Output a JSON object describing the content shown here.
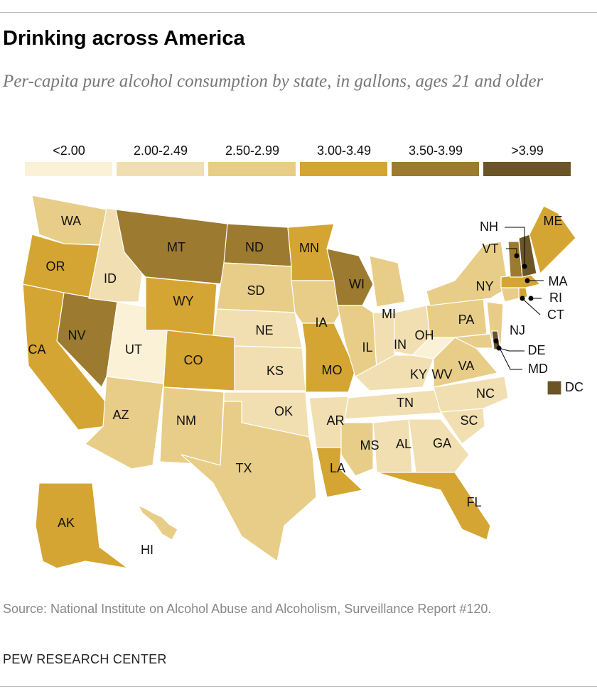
{
  "header": {
    "title": "Drinking across America",
    "subtitle": "Per-capita pure alcohol consumption by state, in gallons, ages 21 and older"
  },
  "legend": [
    {
      "label": "<2.00",
      "color": "#fbf1d6"
    },
    {
      "label": "2.00-2.49",
      "color": "#f1dfb1"
    },
    {
      "label": "2.50-2.99",
      "color": "#e8cd88"
    },
    {
      "label": "3.00-3.49",
      "color": "#d4a532"
    },
    {
      "label": "3.50-3.99",
      "color": "#9c7a30"
    },
    {
      "label": ">3.99",
      "color": "#6b5526"
    }
  ],
  "states": [
    {
      "label": "WA",
      "color": "#e8cd88"
    },
    {
      "label": "OR",
      "color": "#d4a532"
    },
    {
      "label": "CA",
      "color": "#d4a532"
    },
    {
      "label": "NV",
      "color": "#9c7a30"
    },
    {
      "label": "ID",
      "color": "#f1dfb1"
    },
    {
      "label": "UT",
      "color": "#fbf1d6"
    },
    {
      "label": "AZ",
      "color": "#e8cd88"
    },
    {
      "label": "MT",
      "color": "#9c7a30"
    },
    {
      "label": "WY",
      "color": "#d4a532"
    },
    {
      "label": "CO",
      "color": "#d4a532"
    },
    {
      "label": "NM",
      "color": "#e8cd88"
    },
    {
      "label": "ND",
      "color": "#9c7a30"
    },
    {
      "label": "SD",
      "color": "#e8cd88"
    },
    {
      "label": "NE",
      "color": "#f1dfb1"
    },
    {
      "label": "KS",
      "color": "#f1dfb1"
    },
    {
      "label": "OK",
      "color": "#f1dfb1"
    },
    {
      "label": "TX",
      "color": "#e8cd88"
    },
    {
      "label": "MN",
      "color": "#d4a532"
    },
    {
      "label": "IA",
      "color": "#e8cd88"
    },
    {
      "label": "MO",
      "color": "#d4a532"
    },
    {
      "label": "AR",
      "color": "#f1dfb1"
    },
    {
      "label": "LA",
      "color": "#d4a532"
    },
    {
      "label": "WI",
      "color": "#9c7a30"
    },
    {
      "label": "IL",
      "color": "#e8cd88"
    },
    {
      "label": "MI",
      "color": "#e8cd88"
    },
    {
      "label": "IN",
      "color": "#f1dfb1"
    },
    {
      "label": "OH",
      "color": "#f1dfb1"
    },
    {
      "label": "KY",
      "color": "#f1dfb1"
    },
    {
      "label": "TN",
      "color": "#f1dfb1"
    },
    {
      "label": "MS",
      "color": "#e8cd88"
    },
    {
      "label": "AL",
      "color": "#f1dfb1"
    },
    {
      "label": "GA",
      "color": "#f1dfb1"
    },
    {
      "label": "FL",
      "color": "#d4a532"
    },
    {
      "label": "SC",
      "color": "#f1dfb1"
    },
    {
      "label": "NC",
      "color": "#f1dfb1"
    },
    {
      "label": "VA",
      "color": "#e8cd88"
    },
    {
      "label": "WV",
      "color": "#fbf1d6"
    },
    {
      "label": "PA",
      "color": "#e8cd88"
    },
    {
      "label": "NY",
      "color": "#e8cd88"
    },
    {
      "label": "NJ",
      "color": "#e8cd88"
    },
    {
      "label": "MD",
      "color": "#e8cd88"
    },
    {
      "label": "DE",
      "color": "#6b5526"
    },
    {
      "label": "DC",
      "color": "#6b5526"
    },
    {
      "label": "CT",
      "color": "#e8cd88"
    },
    {
      "label": "RI",
      "color": "#d4a532"
    },
    {
      "label": "MA",
      "color": "#d4a532"
    },
    {
      "label": "VT",
      "color": "#9c7a30"
    },
    {
      "label": "NH",
      "color": "#6b5526"
    },
    {
      "label": "ME",
      "color": "#d4a532"
    },
    {
      "label": "AK",
      "color": "#d4a532"
    },
    {
      "label": "HI",
      "color": "#e8cd88"
    }
  ],
  "source": "Source: National Institute on Alcohol Abuse and Alcoholism, Surveillance Report #120.",
  "footer": "PEW RESEARCH CENTER"
}
